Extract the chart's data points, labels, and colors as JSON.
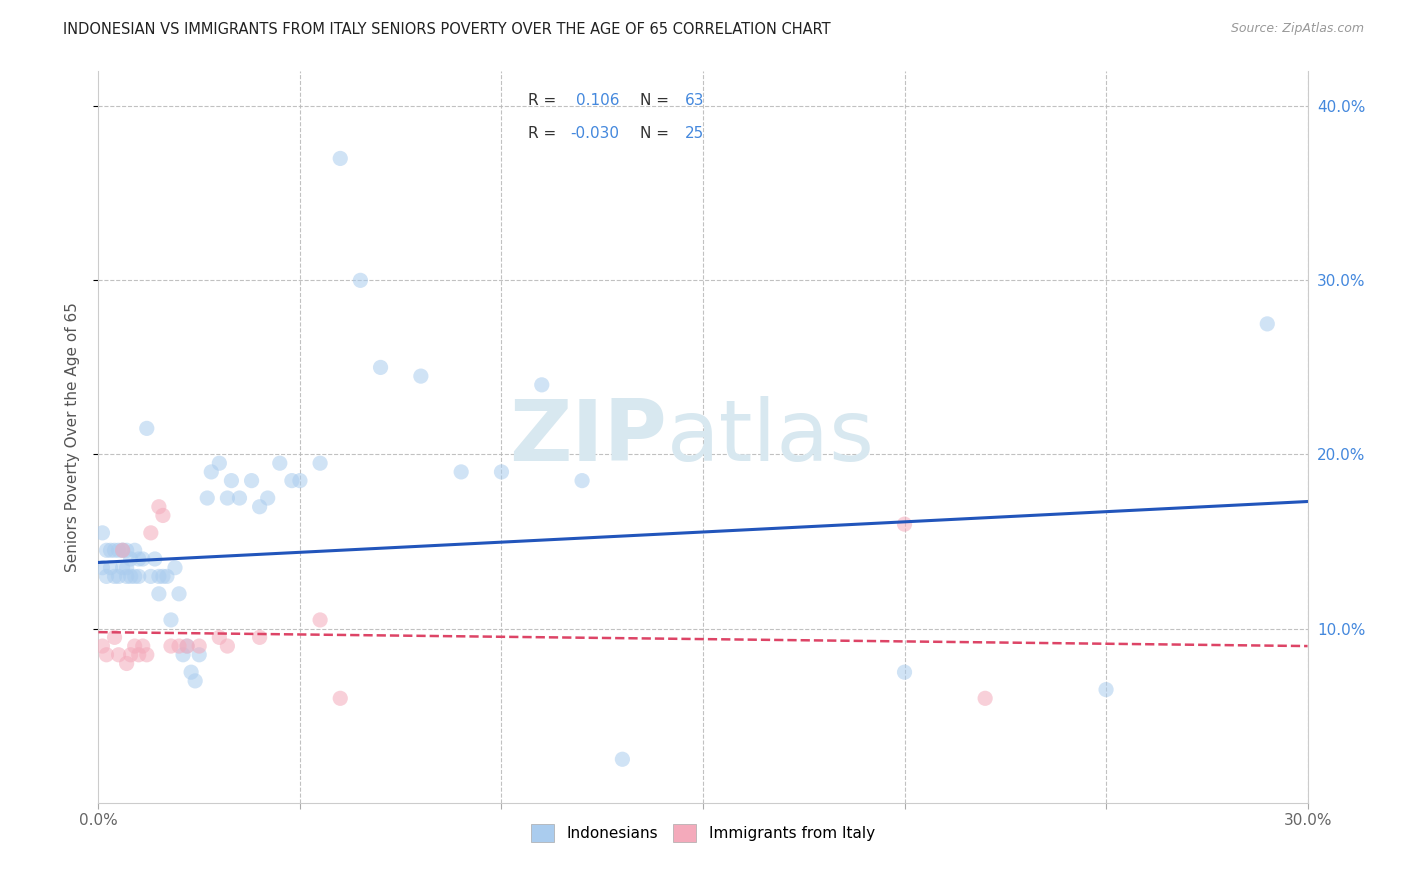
{
  "title": "INDONESIAN VS IMMIGRANTS FROM ITALY SENIORS POVERTY OVER THE AGE OF 65 CORRELATION CHART",
  "source": "Source: ZipAtlas.com",
  "ylabel": "Seniors Poverty Over the Age of 65",
  "xlim": [
    0.0,
    0.3
  ],
  "ylim": [
    0.0,
    0.42
  ],
  "blue_R": "0.106",
  "blue_N": "63",
  "pink_R": "-0.030",
  "pink_N": "25",
  "indonesian_x": [
    0.001,
    0.001,
    0.002,
    0.002,
    0.003,
    0.003,
    0.004,
    0.004,
    0.005,
    0.005,
    0.006,
    0.006,
    0.006,
    0.007,
    0.007,
    0.007,
    0.008,
    0.008,
    0.009,
    0.009,
    0.01,
    0.01,
    0.011,
    0.012,
    0.013,
    0.014,
    0.015,
    0.015,
    0.016,
    0.017,
    0.018,
    0.019,
    0.02,
    0.021,
    0.022,
    0.023,
    0.024,
    0.025,
    0.027,
    0.028,
    0.03,
    0.032,
    0.033,
    0.035,
    0.038,
    0.04,
    0.042,
    0.045,
    0.048,
    0.05,
    0.055,
    0.06,
    0.065,
    0.07,
    0.08,
    0.09,
    0.1,
    0.11,
    0.12,
    0.13,
    0.2,
    0.25,
    0.29
  ],
  "indonesian_y": [
    0.155,
    0.135,
    0.145,
    0.13,
    0.145,
    0.135,
    0.145,
    0.13,
    0.145,
    0.13,
    0.145,
    0.135,
    0.145,
    0.13,
    0.145,
    0.135,
    0.13,
    0.14,
    0.13,
    0.145,
    0.13,
    0.14,
    0.14,
    0.215,
    0.13,
    0.14,
    0.13,
    0.12,
    0.13,
    0.13,
    0.105,
    0.135,
    0.12,
    0.085,
    0.09,
    0.075,
    0.07,
    0.085,
    0.175,
    0.19,
    0.195,
    0.175,
    0.185,
    0.175,
    0.185,
    0.17,
    0.175,
    0.195,
    0.185,
    0.185,
    0.195,
    0.37,
    0.3,
    0.25,
    0.245,
    0.19,
    0.19,
    0.24,
    0.185,
    0.025,
    0.075,
    0.065,
    0.275
  ],
  "italy_x": [
    0.001,
    0.002,
    0.004,
    0.005,
    0.006,
    0.007,
    0.008,
    0.009,
    0.01,
    0.011,
    0.012,
    0.013,
    0.015,
    0.016,
    0.018,
    0.02,
    0.022,
    0.025,
    0.03,
    0.032,
    0.04,
    0.055,
    0.06,
    0.2,
    0.22
  ],
  "italy_y": [
    0.09,
    0.085,
    0.095,
    0.085,
    0.145,
    0.08,
    0.085,
    0.09,
    0.085,
    0.09,
    0.085,
    0.155,
    0.17,
    0.165,
    0.09,
    0.09,
    0.09,
    0.09,
    0.095,
    0.09,
    0.095,
    0.105,
    0.06,
    0.16,
    0.06
  ],
  "blue_line_x": [
    0.0,
    0.3
  ],
  "blue_line_y": [
    0.138,
    0.173
  ],
  "pink_line_x": [
    0.0,
    0.3
  ],
  "pink_line_y": [
    0.098,
    0.09
  ],
  "dot_size": 120,
  "dot_alpha": 0.55,
  "blue_color": "#aaccee",
  "pink_color": "#f4aabb",
  "line_blue": "#2255bb",
  "line_pink": "#dd4466",
  "grid_color": "#bbbbbb",
  "bg_color": "#ffffff",
  "title_color": "#222222",
  "right_axis_color": "#4488dd",
  "watermark_zip": "ZIP",
  "watermark_atlas": "atlas",
  "watermark_color": "#d8e8f0"
}
